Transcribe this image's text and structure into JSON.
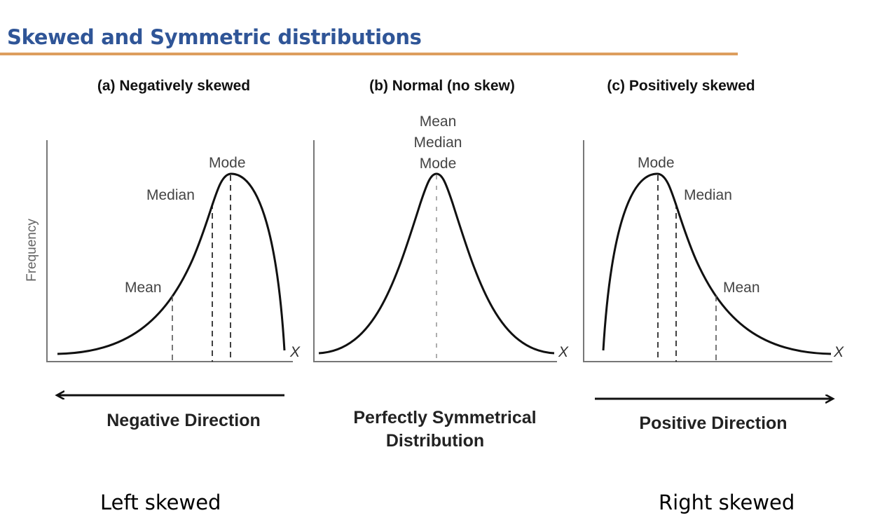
{
  "title": "Skewed and Symmetric distributions",
  "colors": {
    "title": "#2f5597",
    "underline": "#dd9e5e",
    "ink": "#111111",
    "label": "#444444"
  },
  "y_axis_label": "Frequency",
  "panels": [
    {
      "heading": "(a) Negatively skewed",
      "x_label": "X",
      "skew": "negative",
      "markers": [
        {
          "name": "mean",
          "label": "Mean"
        },
        {
          "name": "median",
          "label": "Median"
        },
        {
          "name": "mode",
          "label": "Mode"
        }
      ],
      "direction_label": "Negative Direction",
      "arrow": "left"
    },
    {
      "heading": "(b) Normal (no skew)",
      "x_label": "X",
      "skew": "none",
      "center_label_lines": [
        "Mean",
        "Median",
        "Mode"
      ],
      "direction_label_lines": [
        "Perfectly Symmetrical",
        "Distribution"
      ]
    },
    {
      "heading": "(c) Positively skewed",
      "x_label": "X",
      "skew": "positive",
      "markers": [
        {
          "name": "mode",
          "label": "Mode"
        },
        {
          "name": "median",
          "label": "Median"
        },
        {
          "name": "mean",
          "label": "Mean"
        }
      ],
      "direction_label": "Positive Direction",
      "arrow": "right"
    }
  ],
  "captions": {
    "left": "Left skewed",
    "right": "Right skewed"
  }
}
